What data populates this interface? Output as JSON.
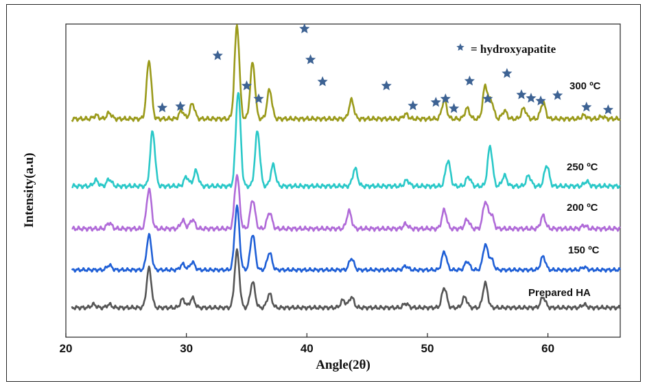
{
  "chart_data": {
    "type": "line",
    "title": "",
    "xlabel": "Angle(2θ)",
    "ylabel": "Intensity(a.u)",
    "xlim": [
      20,
      66
    ],
    "xticks": [
      20,
      30,
      40,
      50,
      60
    ],
    "yticks_shown": false,
    "legend": {
      "marker": "star",
      "text": "= hydroxyapatite",
      "position": "top-right"
    },
    "colors": {
      "prepared": "#555555",
      "c150": "#1f5fd6",
      "c200": "#b06ad8",
      "c250": "#2ac8c8",
      "c300": "#9a9a1a",
      "star": "#3d6293"
    },
    "series": [
      {
        "name": "300 ºC",
        "key": "c300",
        "baseline": 0.0,
        "scale": 1.0,
        "x": [
          20.5,
          22.5,
          23.6,
          26.9,
          29.6,
          30.5,
          34.2,
          35.5,
          36.9,
          43.7,
          48.2,
          51.4,
          53.3,
          54.8,
          55.3,
          56.4,
          58.0,
          59.6,
          63.0,
          64.5,
          66.0
        ],
        "y": [
          0,
          0.3,
          0.5,
          5.0,
          0.7,
          1.3,
          8.0,
          4.8,
          2.5,
          1.6,
          0.4,
          1.6,
          0.9,
          2.8,
          1.5,
          0.7,
          0.9,
          1.4,
          0.3,
          0.2,
          0
        ]
      },
      {
        "name": "250 ºC",
        "key": "c250",
        "baseline": 0.0,
        "scale": 1.0,
        "x": [
          20.5,
          22.5,
          23.6,
          27.2,
          30.0,
          30.8,
          34.3,
          35.9,
          37.2,
          44.0,
          48.3,
          51.7,
          53.4,
          55.2,
          56.4,
          58.4,
          59.9,
          63.2,
          66.0
        ],
        "y": [
          0,
          0.5,
          0.6,
          4.7,
          0.8,
          1.3,
          8.1,
          4.7,
          1.8,
          1.5,
          0.5,
          2.2,
          0.8,
          3.4,
          0.9,
          0.9,
          1.8,
          0.4,
          0
        ]
      },
      {
        "name": "200 ºC",
        "key": "c200",
        "baseline": 0.0,
        "scale": 1.0,
        "x": [
          20.5,
          23.6,
          26.9,
          29.7,
          30.5,
          34.2,
          35.5,
          36.9,
          43.5,
          48.2,
          51.4,
          53.3,
          54.8,
          55.3,
          59.6,
          63.0,
          66.0
        ],
        "y": [
          0,
          0.5,
          3.4,
          0.7,
          0.8,
          4.6,
          2.5,
          1.4,
          1.5,
          0.4,
          1.6,
          0.8,
          2.3,
          1.2,
          1.1,
          0.3,
          0
        ]
      },
      {
        "name": "150 ºC",
        "key": "c150",
        "baseline": 0.0,
        "scale": 1.0,
        "x": [
          20.5,
          23.6,
          26.9,
          29.7,
          30.5,
          34.2,
          35.5,
          36.9,
          43.7,
          48.2,
          51.4,
          53.3,
          54.8,
          55.3,
          59.6,
          63.0,
          66.0
        ],
        "y": [
          0,
          0.5,
          3.6,
          0.6,
          0.8,
          6.6,
          3.7,
          1.8,
          1.2,
          0.4,
          1.9,
          0.9,
          2.6,
          1.1,
          1.4,
          0.3,
          0
        ]
      },
      {
        "name": "Prepared HA",
        "key": "prepared",
        "baseline": 0.0,
        "scale": 1.0,
        "x": [
          20.5,
          22.3,
          23.6,
          26.9,
          29.7,
          30.5,
          34.2,
          35.5,
          36.9,
          43.0,
          43.7,
          48.2,
          51.4,
          53.1,
          54.8,
          59.6,
          63.0,
          66.0
        ],
        "y": [
          0,
          0.3,
          0.3,
          3.7,
          0.8,
          0.9,
          5.3,
          2.4,
          1.3,
          0.7,
          1.0,
          0.4,
          1.9,
          1.0,
          2.3,
          1.0,
          0.3,
          0
        ]
      }
    ],
    "star_positions_2theta": [
      28.0,
      29.5,
      32.6,
      35.0,
      36.0,
      39.8,
      40.3,
      41.3,
      46.6,
      48.8,
      50.7,
      51.5,
      52.2,
      53.5,
      55.0,
      56.6,
      57.8,
      58.6,
      59.4,
      60.8,
      63.2,
      65.0
    ]
  }
}
